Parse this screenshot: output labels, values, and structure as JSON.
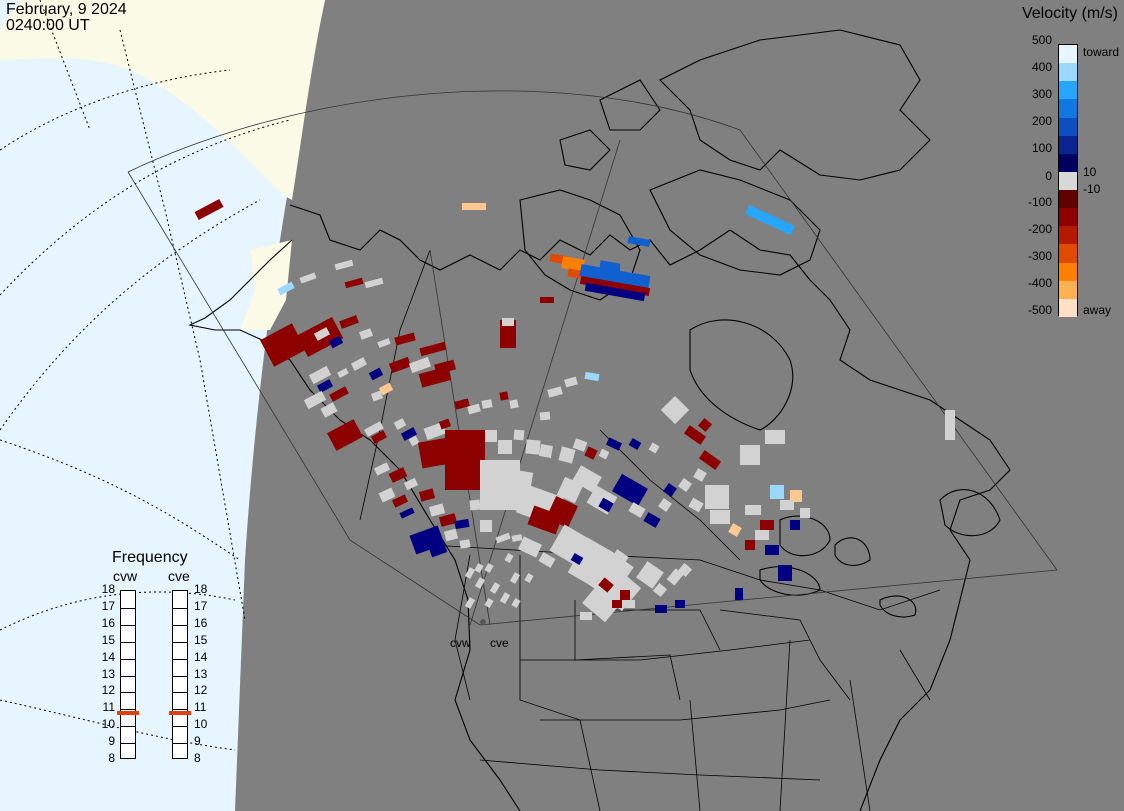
{
  "header": {
    "date": "February, 9 2024",
    "time": "0240:00 UT"
  },
  "legend": {
    "title": "Velocity (m/s)",
    "ticks": [
      "500",
      "400",
      "300",
      "200",
      "100",
      "10",
      "0",
      "-10",
      "-100",
      "-200",
      "-300",
      "-400",
      "-500"
    ],
    "toward_label": "toward",
    "away_label": "away",
    "colors": [
      "#e6f5ff",
      "#9bd8ff",
      "#27a6ff",
      "#1078e0",
      "#0d4fc0",
      "#0a258f",
      "#000060",
      "#d8d8d8",
      "#600000",
      "#8c0000",
      "#b51a00",
      "#e04b00",
      "#ff8000",
      "#ffb050",
      "#ffe0c4"
    ]
  },
  "frequency_panel": {
    "title": "Frequency",
    "radars": [
      {
        "name": "cvw",
        "value_mhz": 10.8
      },
      {
        "name": "cve",
        "value_mhz": 10.8
      }
    ],
    "scale": [
      "18",
      "17",
      "16",
      "15",
      "14",
      "13",
      "12",
      "11",
      "10",
      "9",
      "8"
    ],
    "marker_color": "#e04010"
  },
  "map": {
    "radar_site_labels": [
      "cvw",
      "cve"
    ],
    "background_color": "#808080",
    "day_color": "#fafae6",
    "twilight_color": "#e6f5ff",
    "ground_scatter_color": "#d2d2d2"
  }
}
